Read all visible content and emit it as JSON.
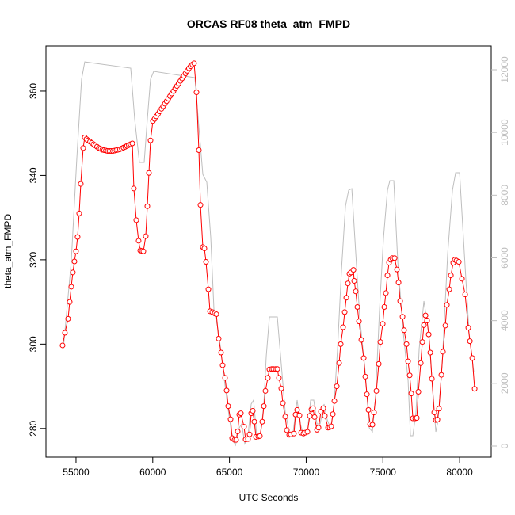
{
  "chart_data": {
    "type": "line",
    "title": "ORCAS RF08 theta_atm_FMPD",
    "x_label": "UTC Seconds",
    "y_label": "theta_atm_FMPD",
    "xlim": [
      53040,
      82060
    ],
    "ylim": [
      273.2,
      370.7
    ],
    "y2lim": [
      -354,
      12758
    ],
    "xticks": [
      55000,
      60000,
      65000,
      70000,
      75000,
      80000
    ],
    "yticks": [
      280,
      300,
      320,
      340,
      360
    ],
    "y2ticks": [
      0,
      2000,
      4000,
      6000,
      8000,
      10000,
      12000
    ],
    "y2_color": "#bebebe",
    "series": [
      {
        "color": "#bebebe",
        "axis": "y2",
        "marker": "none",
        "x": [
          54174,
          54690,
          55052,
          55362,
          55568,
          58564,
          58822,
          59132,
          59442,
          59649,
          59855,
          60062,
          62438,
          62748,
          63006,
          63264,
          63523,
          63781,
          63987,
          64297,
          64607,
          64865,
          65123,
          65382,
          65640,
          65795,
          66001,
          66208,
          66415,
          66570,
          66776,
          67034,
          67241,
          67396,
          67603,
          68119,
          68377,
          68636,
          68946,
          69152,
          69410,
          69617,
          69824,
          70082,
          70288,
          70495,
          70702,
          70908,
          71166,
          71373,
          71580,
          71786,
          72045,
          72303,
          72561,
          72768,
          72974,
          73232,
          73490,
          73852,
          74111,
          74317,
          74524,
          74782,
          75040,
          75298,
          75453,
          75711,
          75969,
          76330,
          76641,
          76796,
          76951,
          77158,
          77365,
          77674,
          77984,
          78243,
          78449,
          78604,
          78862,
          79224,
          79534,
          79740,
          79999,
          80308,
          80618,
          80928
        ],
        "values": [
          3107,
          5886,
          9170,
          11695,
          12251,
          12049,
          10432,
          9043,
          9043,
          10432,
          11695,
          11948,
          11771,
          11746,
          10180,
          8664,
          8412,
          6643,
          4370,
          3612,
          2349,
          1339,
          455,
          0,
          581,
          707,
          76,
          328,
          1339,
          1465,
          328,
          379,
          1339,
          2854,
          4117,
          4117,
          2602,
          1086,
          328,
          455,
          1465,
          707,
          379,
          455,
          1465,
          1465,
          707,
          707,
          1339,
          834,
          581,
          1086,
          3107,
          5633,
          7654,
          8159,
          8210,
          6138,
          4117,
          2349,
          581,
          455,
          1591,
          4370,
          6643,
          8159,
          8462,
          8462,
          5886,
          3612,
          2097,
          328,
          328,
          1086,
          3107,
          4623,
          3612,
          1844,
          455,
          834,
          2602,
          6138,
          8159,
          8715,
          8715,
          6138,
          3612,
          2349
        ]
      },
      {
        "color": "#ff0000",
        "marker": "circle",
        "x": [
          54122,
          54277,
          54484,
          54587,
          54690,
          54793,
          54897,
          55000,
          55103,
          55207,
          55310,
          55465,
          55568,
          55680,
          55795,
          55910,
          56025,
          56140,
          56255,
          56370,
          56485,
          56600,
          56715,
          56830,
          56945,
          57060,
          57175,
          57290,
          57405,
          57520,
          57635,
          57750,
          57865,
          57980,
          58095,
          58210,
          58325,
          58440,
          58555,
          58670,
          58770,
          58925,
          59080,
          59184,
          59287,
          59390,
          59545,
          59649,
          59752,
          59855,
          60010,
          60120,
          60232,
          60344,
          60456,
          60568,
          60680,
          60792,
          60904,
          61016,
          61128,
          61240,
          61352,
          61464,
          61576,
          61688,
          61800,
          61912,
          62024,
          62136,
          62248,
          62360,
          62472,
          62584,
          62696,
          62851,
          63006,
          63109,
          63264,
          63367,
          63471,
          63626,
          63729,
          63884,
          64039,
          64142,
          64297,
          64452,
          64555,
          64710,
          64814,
          64917,
          65072,
          65175,
          65330,
          65433,
          65537,
          65640,
          65743,
          65950,
          66053,
          66208,
          66311,
          66415,
          66518,
          66621,
          66725,
          66880,
          66983,
          67138,
          67241,
          67344,
          67499,
          67603,
          67758,
          67861,
          68016,
          68119,
          68222,
          68377,
          68480,
          68636,
          68739,
          68894,
          68997,
          69204,
          69307,
          69410,
          69565,
          69669,
          69824,
          69927,
          70082,
          70237,
          70340,
          70443,
          70547,
          70702,
          70805,
          70960,
          71115,
          71218,
          71425,
          71528,
          71631,
          71735,
          71838,
          71993,
          72148,
          72251,
          72406,
          72510,
          72613,
          72716,
          72819,
          72922,
          73078,
          73129,
          73232,
          73336,
          73439,
          73594,
          73749,
          73852,
          73956,
          74059,
          74162,
          74317,
          74420,
          74575,
          74730,
          74834,
          74989,
          75092,
          75195,
          75298,
          75402,
          75505,
          75608,
          75763,
          75918,
          76021,
          76125,
          76280,
          76383,
          76538,
          76641,
          76745,
          76848,
          76951,
          77106,
          77209,
          77313,
          77468,
          77571,
          77674,
          77778,
          77881,
          77984,
          78088,
          78191,
          78346,
          78449,
          78552,
          78656,
          78811,
          78914,
          79069,
          79172,
          79327,
          79430,
          79585,
          79689,
          79792,
          79947,
          80153,
          80360,
          80567,
          80670,
          80825,
          80980
        ],
        "values": [
          299.7,
          302.7,
          306,
          310,
          313.6,
          317,
          319.6,
          322,
          325.4,
          331,
          338,
          346.5,
          349,
          348.6,
          348.3,
          348,
          347.7,
          347.4,
          347.1,
          346.8,
          346.5,
          346.3,
          346.1,
          346,
          345.9,
          345.8,
          345.8,
          345.8,
          345.8,
          345.9,
          346,
          346.1,
          346.2,
          346.4,
          346.6,
          346.8,
          347,
          347.2,
          347.4,
          347.6,
          336.9,
          329.4,
          324.5,
          322.2,
          322.1,
          322,
          325.6,
          332.7,
          340.6,
          348.3,
          352.9,
          353.4,
          354,
          354.6,
          355.2,
          355.8,
          356.4,
          357,
          357.6,
          358.2,
          358.8,
          359.4,
          360,
          360.6,
          361.2,
          361.8,
          362.4,
          363,
          363.6,
          364.2,
          364.8,
          365.4,
          365.9,
          366.3,
          366.6,
          359.7,
          346,
          333,
          323,
          322.7,
          319.5,
          313,
          307.8,
          307.6,
          307.3,
          307.1,
          301.3,
          298,
          295,
          292,
          289,
          285.3,
          282.2,
          277.7,
          277.3,
          277.3,
          279.3,
          283.3,
          283.6,
          280.4,
          277.4,
          277.5,
          278.6,
          283.6,
          284.2,
          281.6,
          278,
          278.1,
          278.2,
          281.6,
          285.3,
          288.9,
          292,
          294,
          294.1,
          294.1,
          294.1,
          294.1,
          292,
          289.5,
          286,
          282.8,
          279.6,
          278.5,
          278.6,
          278.8,
          283.3,
          284.4,
          283.1,
          279,
          278.8,
          279,
          279.2,
          283,
          284.5,
          284.8,
          282.7,
          279.7,
          280.2,
          284,
          284.8,
          283,
          280.2,
          280.3,
          280.5,
          283.4,
          286.5,
          290,
          295.5,
          300,
          304,
          307.6,
          311,
          314.4,
          316.7,
          317,
          317.6,
          315,
          312.5,
          308.8,
          305.4,
          301,
          296.7,
          292.3,
          288.1,
          284.4,
          281,
          280.9,
          283.8,
          288.9,
          295.3,
          300.5,
          304.8,
          308.8,
          312.1,
          316.3,
          319.3,
          320,
          320.4,
          320.4,
          317.7,
          314.6,
          310.2,
          306.5,
          303.3,
          300,
          295.9,
          292.6,
          288.3,
          282.4,
          282.4,
          282.5,
          288.7,
          295.5,
          300.5,
          304.5,
          306.8,
          305.6,
          302.3,
          298,
          291.8,
          283.8,
          282,
          282.1,
          284.7,
          292.7,
          298.2,
          304.4,
          309.3,
          313,
          316.3,
          319.3,
          320,
          319.8,
          319.5,
          315.5,
          311.8,
          303.9,
          300.7,
          296.7,
          289.4
        ]
      }
    ]
  }
}
